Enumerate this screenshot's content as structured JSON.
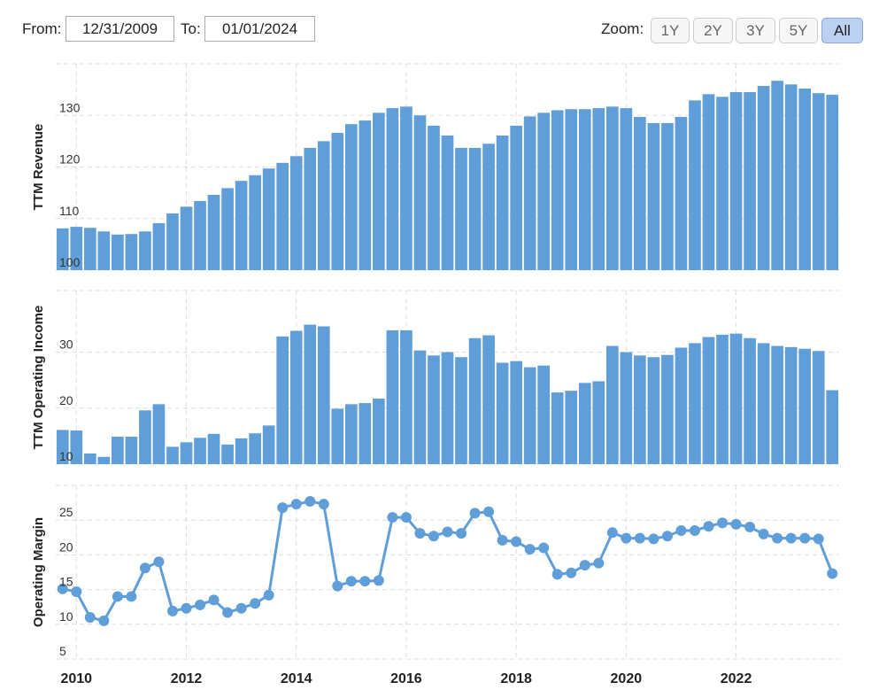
{
  "ui": {
    "from_label": "From:",
    "from_value": "12/31/2009",
    "to_label": "To:",
    "to_value": "01/01/2024",
    "zoom_label": "Zoom:",
    "zoom_buttons": [
      "1Y",
      "2Y",
      "3Y",
      "5Y",
      "All"
    ],
    "active_zoom": 4
  },
  "chart_data": [
    {
      "type": "bar",
      "ylabel": "TTM Revenue",
      "color": "#5f9ed8",
      "x": [
        2009.75,
        2010,
        2010.25,
        2010.5,
        2010.75,
        2011,
        2011.25,
        2011.5,
        2011.75,
        2012,
        2012.25,
        2012.5,
        2012.75,
        2013,
        2013.25,
        2013.5,
        2013.75,
        2014,
        2014.25,
        2014.5,
        2014.75,
        2015,
        2015.25,
        2015.5,
        2015.75,
        2016,
        2016.25,
        2016.5,
        2016.75,
        2017,
        2017.25,
        2017.5,
        2017.75,
        2018,
        2018.25,
        2018.5,
        2018.75,
        2019,
        2019.25,
        2019.5,
        2019.75,
        2020,
        2020.25,
        2020.5,
        2020.75,
        2021,
        2021.25,
        2021.5,
        2021.75,
        2022,
        2022.25,
        2022.5,
        2022.75,
        2023,
        2023.25,
        2023.5,
        2023.75
      ],
      "values": [
        108.1,
        108.4,
        108.2,
        107.5,
        106.9,
        107.0,
        107.5,
        109.1,
        111.0,
        112.3,
        113.4,
        114.6,
        115.9,
        117.3,
        118.4,
        119.7,
        120.8,
        122.1,
        123.7,
        125.0,
        126.6,
        128.3,
        129.0,
        130.5,
        131.4,
        131.7,
        130.0,
        128.0,
        126.1,
        123.7,
        123.7,
        124.5,
        126.1,
        128.0,
        129.8,
        130.5,
        131.0,
        131.2,
        131.2,
        131.4,
        131.7,
        131.4,
        129.7,
        128.5,
        128.5,
        129.7,
        132.9,
        134.1,
        133.6,
        134.5,
        134.5,
        135.7,
        136.7,
        136.0,
        135.2,
        134.3,
        134.0
      ],
      "xlim": [
        2009.625,
        2023.875
      ],
      "xticks": [
        2010,
        2012,
        2014,
        2016,
        2018,
        2020,
        2022
      ],
      "ylim": [
        100,
        140
      ],
      "yticks": [
        100,
        110,
        120,
        130
      ],
      "grid": true
    },
    {
      "type": "bar",
      "ylabel": "TTM Operating Income",
      "color": "#5f9ed8",
      "x": [
        2009.75,
        2010,
        2010.25,
        2010.5,
        2010.75,
        2011,
        2011.25,
        2011.5,
        2011.75,
        2012,
        2012.25,
        2012.5,
        2012.75,
        2013,
        2013.25,
        2013.5,
        2013.75,
        2014,
        2014.25,
        2014.5,
        2014.75,
        2015,
        2015.25,
        2015.5,
        2015.75,
        2016,
        2016.25,
        2016.5,
        2016.75,
        2017,
        2017.25,
        2017.5,
        2017.75,
        2018,
        2018.25,
        2018.5,
        2018.75,
        2019,
        2019.25,
        2019.5,
        2019.75,
        2020,
        2020.25,
        2020.5,
        2020.75,
        2021,
        2021.25,
        2021.5,
        2021.75,
        2022,
        2022.25,
        2022.5,
        2022.75,
        2023,
        2023.25,
        2023.5,
        2023.75
      ],
      "values": [
        16.1,
        16.0,
        11.9,
        11.3,
        14.9,
        14.9,
        19.6,
        20.7,
        13.1,
        13.9,
        14.7,
        15.4,
        13.5,
        14.6,
        15.5,
        16.9,
        32.8,
        33.8,
        34.9,
        34.6,
        19.9,
        20.7,
        20.9,
        21.7,
        33.9,
        33.9,
        30.3,
        29.4,
        30.0,
        29.1,
        32.5,
        33.0,
        28.1,
        28.4,
        27.3,
        27.6,
        22.8,
        23.1,
        24.5,
        24.8,
        31.1,
        30.0,
        29.4,
        29.1,
        29.5,
        30.8,
        31.6,
        32.7,
        33.1,
        33.3,
        32.5,
        31.6,
        31.1,
        30.9,
        30.6,
        30.2,
        23.2
      ],
      "xlim": [
        2009.625,
        2023.875
      ],
      "xticks": [
        2010,
        2012,
        2014,
        2016,
        2018,
        2020,
        2022
      ],
      "ylim": [
        10,
        41
      ],
      "yticks": [
        10,
        20,
        30
      ],
      "grid": true
    },
    {
      "type": "line",
      "ylabel": "Operating Margin",
      "color": "#5f9ed8",
      "x": [
        2009.75,
        2010,
        2010.25,
        2010.5,
        2010.75,
        2011,
        2011.25,
        2011.5,
        2011.75,
        2012,
        2012.25,
        2012.5,
        2012.75,
        2013,
        2013.25,
        2013.5,
        2013.75,
        2014,
        2014.25,
        2014.5,
        2014.75,
        2015,
        2015.25,
        2015.5,
        2015.75,
        2016,
        2016.25,
        2016.5,
        2016.75,
        2017,
        2017.25,
        2017.5,
        2017.75,
        2018,
        2018.25,
        2018.5,
        2018.75,
        2019,
        2019.25,
        2019.5,
        2019.75,
        2020,
        2020.25,
        2020.5,
        2020.75,
        2021,
        2021.25,
        2021.5,
        2021.75,
        2022,
        2022.25,
        2022.5,
        2022.75,
        2023,
        2023.25,
        2023.5,
        2023.75
      ],
      "values": [
        15.1,
        14.7,
        11.0,
        10.5,
        14.0,
        14.0,
        18.1,
        19.0,
        11.9,
        12.3,
        12.8,
        13.5,
        11.7,
        12.3,
        13.0,
        14.2,
        26.8,
        27.3,
        27.7,
        27.3,
        15.5,
        16.2,
        16.2,
        16.3,
        25.4,
        25.4,
        23.1,
        22.7,
        23.3,
        23.1,
        26.0,
        26.2,
        22.1,
        21.9,
        20.8,
        21.0,
        17.2,
        17.4,
        18.5,
        18.8,
        23.2,
        22.4,
        22.4,
        22.3,
        22.7,
        23.5,
        23.5,
        24.1,
        24.6,
        24.4,
        24.0,
        23.0,
        22.4,
        22.4,
        22.4,
        22.3,
        17.3
      ],
      "xlim": [
        2009.625,
        2023.875
      ],
      "xticks": [
        2010,
        2012,
        2014,
        2016,
        2018,
        2020,
        2022
      ],
      "ylim": [
        5,
        30
      ],
      "yticks": [
        5,
        10,
        15,
        20,
        25
      ],
      "grid": true,
      "show_xtick_labels": true
    }
  ]
}
